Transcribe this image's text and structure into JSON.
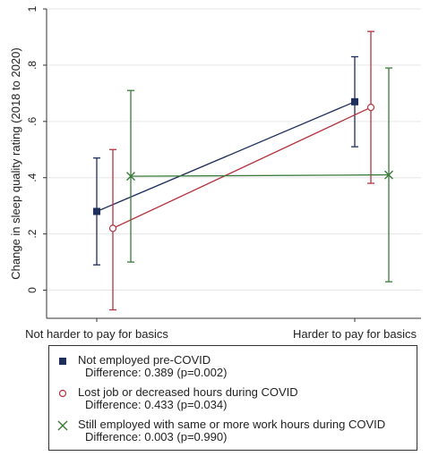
{
  "chart_data": {
    "type": "scatter",
    "title": "",
    "xlabel": "",
    "ylabel": "Change in sleep quality rating (2018 to 2020)",
    "categories": [
      "Not harder to pay for basics",
      "Harder to pay for basics"
    ],
    "ylim": [
      -0.1,
      1.0
    ],
    "yticks": [
      "0",
      ".2",
      ".4",
      ".6",
      ".8",
      "1"
    ],
    "ytick_values": [
      0,
      0.2,
      0.4,
      0.6,
      0.8,
      1.0
    ],
    "grid": true,
    "legend_position": "bottom",
    "series": [
      {
        "name": "Not employed pre-COVID",
        "difference": "Difference: 0.389 (p=0.002)",
        "color": "#1f2f5c",
        "marker": "square",
        "values": [
          0.28,
          0.67
        ],
        "ci_low": [
          0.09,
          0.51
        ],
        "ci_high": [
          0.47,
          0.83
        ]
      },
      {
        "name": "Lost job or decreased hours during COVID",
        "difference": "Difference: 0.433 (p=0.034)",
        "color": "#b5343f",
        "marker": "circle",
        "values": [
          0.22,
          0.65
        ],
        "ci_low": [
          -0.07,
          0.38
        ],
        "ci_high": [
          0.5,
          0.92
        ]
      },
      {
        "name": "Still employed with same or more work hours during COVID",
        "difference": "Difference: 0.003 (p=0.990)",
        "color": "#3a7a3a",
        "marker": "x",
        "values": [
          0.405,
          0.41
        ],
        "ci_low": [
          0.1,
          0.03
        ],
        "ci_high": [
          0.71,
          0.79
        ]
      }
    ]
  }
}
